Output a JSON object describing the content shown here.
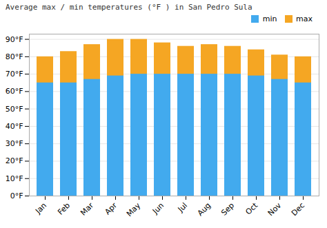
{
  "chart_data": {
    "type": "bar",
    "title": "Average max / min temperatures (°F ) in San Pedro Sula",
    "categories": [
      "Jan",
      "Feb",
      "Mar",
      "Apr",
      "May",
      "Jun",
      "Jul",
      "Aug",
      "Sep",
      "Oct",
      "Nov",
      "Dec"
    ],
    "series": [
      {
        "name": "min",
        "color": "#42aaee",
        "values": [
          65,
          65,
          67,
          69,
          70,
          70,
          70,
          70,
          70,
          69,
          67,
          65
        ]
      },
      {
        "name": "max",
        "color": "#f5a623",
        "values": [
          80,
          83,
          87,
          90,
          90,
          88,
          86,
          87,
          86,
          84,
          81,
          80
        ]
      }
    ],
    "stacked": false,
    "ylim": [
      0,
      93
    ],
    "yticks": [
      {
        "value": 0,
        "label": "0°F"
      },
      {
        "value": 10,
        "label": "10°F"
      },
      {
        "value": 20,
        "label": "20°F"
      },
      {
        "value": 30,
        "label": "30°F"
      },
      {
        "value": 40,
        "label": "40°F"
      },
      {
        "value": 50,
        "label": "50°F"
      },
      {
        "value": 60,
        "label": "60°F"
      },
      {
        "value": 70,
        "label": "70°F"
      },
      {
        "value": 80,
        "label": "80°F"
      },
      {
        "value": 90,
        "label": "90°F"
      }
    ],
    "grid": true,
    "legend": "upper right"
  }
}
